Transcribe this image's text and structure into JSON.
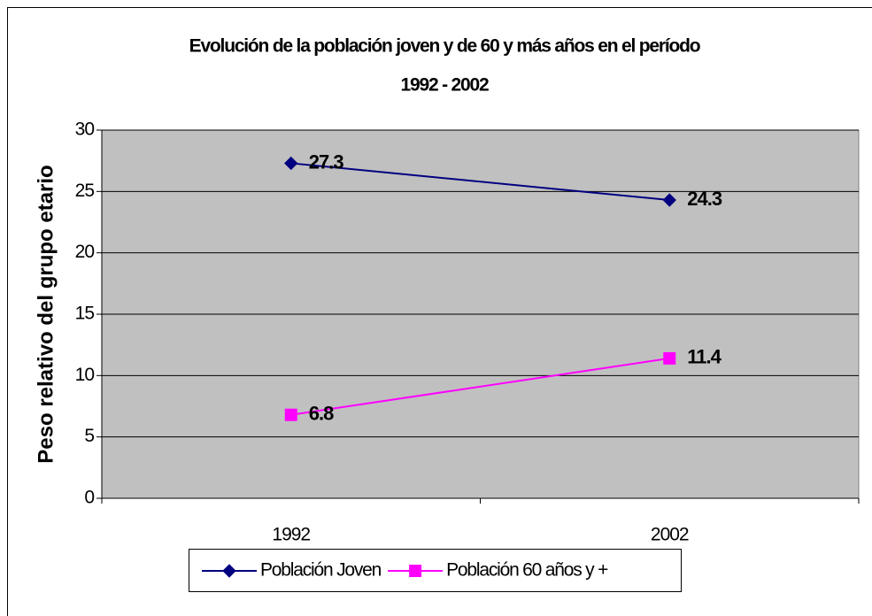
{
  "chart_data": {
    "type": "line",
    "title": [
      "Evolución de la población joven y de 60 y más años en el período",
      "1992 - 2002"
    ],
    "y_label": "Peso relativo del grupo etario",
    "categories": [
      "1992",
      "2002"
    ],
    "series": [
      {
        "name": "Población Joven",
        "color": "#000080",
        "marker": "diamond",
        "values": [
          27.3,
          24.3
        ]
      },
      {
        "name": "Población 60 años y +",
        "color": "#ff00ff",
        "marker": "square",
        "values": [
          6.8,
          11.4
        ]
      }
    ],
    "ylim": [
      0,
      30
    ],
    "yticks": [
      0,
      5,
      10,
      15,
      20,
      25,
      30
    ],
    "grid": true,
    "legend": "bottom"
  }
}
